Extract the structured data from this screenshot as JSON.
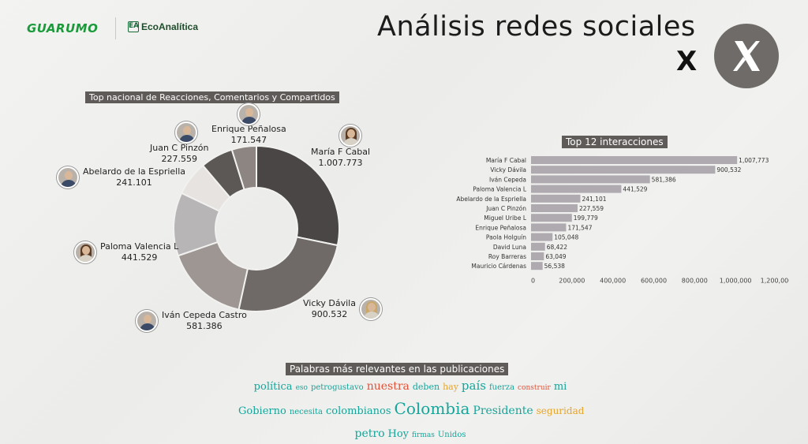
{
  "header": {
    "brand1": "GUARUMO",
    "brand2": "EcoAnalítica",
    "brand2_mark": "EA",
    "title": "Análisis redes sociales",
    "network_letter": "X"
  },
  "donut": {
    "label": "Top nacional de Reacciones, Comentarios y Compartidos",
    "items": [
      {
        "name": "Enrique Peñalosa",
        "value": "171.547"
      },
      {
        "name": "Juan C Pinzón",
        "value": "227.559"
      },
      {
        "name": "María F Cabal",
        "value": "1.007.773"
      },
      {
        "name": "Abelardo de la Espriella",
        "value": "241.101"
      },
      {
        "name": "Paloma Valencia L",
        "value": "441.529"
      },
      {
        "name": "Vicky Dávila",
        "value": "900.532"
      },
      {
        "name": "Iván Cepeda Castro",
        "value": "581.386"
      }
    ]
  },
  "bars": {
    "label": "Top 12 interacciones"
  },
  "chart_data": [
    {
      "type": "pie",
      "title": "Top nacional de Reacciones, Comentarios y Compartidos",
      "categories": [
        "María F Cabal",
        "Vicky Dávila",
        "Iván Cepeda Castro",
        "Paloma Valencia L",
        "Abelardo de la Espriella",
        "Juan C Pinzón",
        "Enrique Peñalosa"
      ],
      "values": [
        1007773,
        900532,
        581386,
        441529,
        241101,
        227559,
        171547
      ],
      "colors": [
        "#494645",
        "#6f6967",
        "#9e9693",
        "#b8b5b7",
        "#e7e3e0",
        "#5c5856",
        "#8d8582",
        "#ebe7e3"
      ]
    },
    {
      "type": "bar",
      "orientation": "horizontal",
      "title": "Top 12 interacciones",
      "categories": [
        "María F Cabal",
        "Vicky Dávila",
        "Iván Cepeda",
        "Paloma Valencia L",
        "Abelardo de la Espriella",
        "Juan C Pinzón",
        "Miguel Uribe L",
        "Enrique Peñalosa",
        "Paola Holguín",
        "David Luna",
        "Roy Barreras",
        "Mauricio Cárdenas"
      ],
      "values": [
        1007773,
        900532,
        581386,
        441529,
        241101,
        227559,
        199779,
        171547,
        105048,
        68422,
        63049,
        56538
      ],
      "value_labels": [
        "1,007,773",
        "900,532",
        "581,386",
        "441,529",
        "241,101",
        "227,559",
        "199,779",
        "171,547",
        "105,048",
        "68,422",
        "63,049",
        "56,538"
      ],
      "xlim": [
        0,
        1200000
      ],
      "xticks": [
        "0",
        "200,000",
        "400,000",
        "600,000",
        "800,000",
        "1,000,000",
        "1,200,000"
      ],
      "bar_color": "#aeaaaf"
    }
  ],
  "cloud": {
    "label": "Palabras más relevantes en las publicaciones",
    "rows": [
      [
        {
          "text": "política",
          "size": 13,
          "color": "#16a59a"
        },
        {
          "text": "eso",
          "size": 9,
          "color": "#16a59a"
        },
        {
          "text": "petrogustavo",
          "size": 10,
          "color": "#16a59a"
        },
        {
          "text": "nuestra",
          "size": 14,
          "color": "#e0533a"
        },
        {
          "text": "deben",
          "size": 11,
          "color": "#16a59a"
        },
        {
          "text": "hay",
          "size": 11,
          "color": "#e7a52a"
        },
        {
          "text": "país",
          "size": 15,
          "color": "#16a59a"
        },
        {
          "text": "fuerza",
          "size": 10,
          "color": "#16a59a"
        },
        {
          "text": "construir",
          "size": 9,
          "color": "#e0533a"
        },
        {
          "text": "mi",
          "size": 13,
          "color": "#16a59a"
        }
      ],
      [
        {
          "text": "Gobierno",
          "size": 13,
          "color": "#16a59a"
        },
        {
          "text": "necesita",
          "size": 10,
          "color": "#16a59a"
        },
        {
          "text": "colombianos",
          "size": 13,
          "color": "#16a59a"
        },
        {
          "text": "Colombia",
          "size": 20,
          "color": "#16a59a"
        },
        {
          "text": "Presidente",
          "size": 14,
          "color": "#16a59a"
        },
        {
          "text": "seguridad",
          "size": 12,
          "color": "#e7a52a"
        }
      ],
      [
        {
          "text": "petro",
          "size": 14,
          "color": "#16a59a"
        },
        {
          "text": "Hoy",
          "size": 13,
          "color": "#16a59a"
        },
        {
          "text": "firmas",
          "size": 9,
          "color": "#16a59a"
        },
        {
          "text": "Unidos",
          "size": 10,
          "color": "#16a59a"
        }
      ]
    ]
  }
}
